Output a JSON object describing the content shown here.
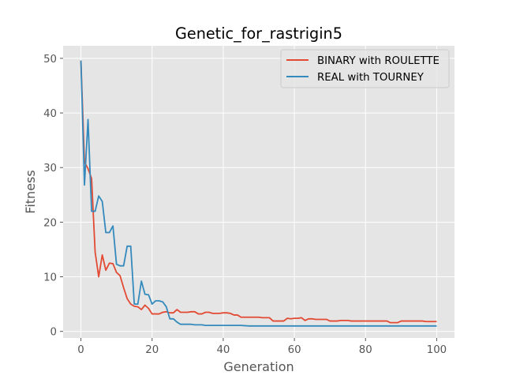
{
  "chart_data": {
    "type": "line",
    "title": "Genetic_for_rastrigin5",
    "xlabel": "Generation",
    "ylabel": "Fitness",
    "xlim": [
      -5,
      105
    ],
    "ylim": [
      -1.2,
      52.3
    ],
    "x_ticks": [
      0,
      20,
      40,
      60,
      80,
      100
    ],
    "y_ticks": [
      0,
      10,
      20,
      30,
      40,
      50
    ],
    "grid": true,
    "legend_position": "top-right",
    "series": [
      {
        "name": "BINARY with ROULETTE",
        "color": "#E24A33",
        "x": [
          0,
          1,
          2,
          3,
          4,
          5,
          6,
          7,
          8,
          9,
          10,
          11,
          12,
          13,
          14,
          15,
          16,
          17,
          18,
          19,
          20,
          21,
          22,
          23,
          24,
          25,
          26,
          27,
          28,
          29,
          30,
          31,
          32,
          33,
          34,
          35,
          36,
          37,
          38,
          39,
          40,
          41,
          42,
          43,
          44,
          45,
          46,
          47,
          48,
          49,
          50,
          51,
          52,
          53,
          54,
          55,
          56,
          57,
          58,
          59,
          60,
          61,
          62,
          63,
          64,
          65,
          66,
          67,
          68,
          69,
          70,
          71,
          72,
          73,
          74,
          75,
          76,
          77,
          78,
          79,
          80,
          81,
          82,
          83,
          84,
          85,
          86,
          87,
          88,
          89,
          90,
          91,
          92,
          93,
          94,
          95,
          96,
          97,
          98,
          99,
          100
        ],
        "values": [
          49.6,
          31.0,
          29.8,
          28.0,
          14.5,
          10.0,
          14.0,
          11.2,
          12.5,
          12.4,
          10.8,
          10.2,
          8.0,
          6.0,
          5.0,
          4.6,
          4.5,
          4.0,
          4.8,
          4.2,
          3.2,
          3.2,
          3.2,
          3.5,
          3.6,
          3.4,
          3.4,
          4.0,
          3.5,
          3.5,
          3.5,
          3.6,
          3.6,
          3.2,
          3.2,
          3.5,
          3.5,
          3.3,
          3.3,
          3.3,
          3.4,
          3.4,
          3.3,
          3.0,
          3.0,
          2.6,
          2.6,
          2.6,
          2.6,
          2.6,
          2.6,
          2.5,
          2.5,
          2.5,
          1.9,
          1.9,
          1.9,
          1.9,
          2.4,
          2.3,
          2.4,
          2.4,
          2.5,
          2.0,
          2.3,
          2.3,
          2.2,
          2.2,
          2.2,
          2.2,
          1.9,
          1.9,
          1.9,
          2.0,
          2.0,
          2.0,
          1.9,
          1.9,
          1.9,
          1.9,
          1.9,
          1.9,
          1.9,
          1.9,
          1.9,
          1.9,
          1.9,
          1.6,
          1.6,
          1.6,
          1.9,
          1.9,
          1.9,
          1.9,
          1.9,
          1.9,
          1.9,
          1.8,
          1.8,
          1.8,
          1.8
        ]
      },
      {
        "name": "REAL with TOURNEY",
        "color": "#348ABD",
        "x": [
          0,
          1,
          2,
          3,
          4,
          5,
          6,
          7,
          8,
          9,
          10,
          11,
          12,
          13,
          14,
          15,
          16,
          17,
          18,
          19,
          20,
          21,
          22,
          23,
          24,
          25,
          26,
          27,
          28,
          29,
          30,
          31,
          32,
          33,
          34,
          35,
          36,
          37,
          38,
          39,
          40,
          41,
          42,
          43,
          44,
          45,
          46,
          47,
          48,
          49,
          50,
          51,
          52,
          53,
          54,
          55,
          56,
          57,
          58,
          59,
          60,
          61,
          62,
          63,
          64,
          65,
          66,
          67,
          68,
          69,
          70,
          71,
          72,
          73,
          74,
          75,
          76,
          77,
          78,
          79,
          80,
          81,
          82,
          83,
          84,
          85,
          86,
          87,
          88,
          89,
          90,
          91,
          92,
          93,
          94,
          95,
          96,
          97,
          98,
          99,
          100
        ],
        "values": [
          49.6,
          26.8,
          38.8,
          22.0,
          22.0,
          24.8,
          23.8,
          18.1,
          18.1,
          19.3,
          12.3,
          12.0,
          12.0,
          15.6,
          15.6,
          5.0,
          5.0,
          9.2,
          6.8,
          6.7,
          5.0,
          5.6,
          5.6,
          5.4,
          4.5,
          2.3,
          2.3,
          1.7,
          1.3,
          1.3,
          1.3,
          1.3,
          1.2,
          1.2,
          1.2,
          1.1,
          1.1,
          1.1,
          1.1,
          1.1,
          1.1,
          1.1,
          1.1,
          1.1,
          1.1,
          1.1,
          1.05,
          1.0,
          1.0,
          1.0,
          1.0,
          1.0,
          1.0,
          1.0,
          1.0,
          1.0,
          1.0,
          1.0,
          1.0,
          1.0,
          1.0,
          1.0,
          1.0,
          1.0,
          1.0,
          1.0,
          1.0,
          1.0,
          1.0,
          1.0,
          1.0,
          1.0,
          1.0,
          1.0,
          1.0,
          1.0,
          1.0,
          1.0,
          1.0,
          1.0,
          1.0,
          1.0,
          1.0,
          1.0,
          1.0,
          1.0,
          1.0,
          1.0,
          1.0,
          1.0,
          1.0,
          1.0,
          1.0,
          1.0,
          1.0,
          1.0,
          1.0,
          1.0,
          1.0,
          1.0,
          1.0
        ]
      }
    ]
  }
}
